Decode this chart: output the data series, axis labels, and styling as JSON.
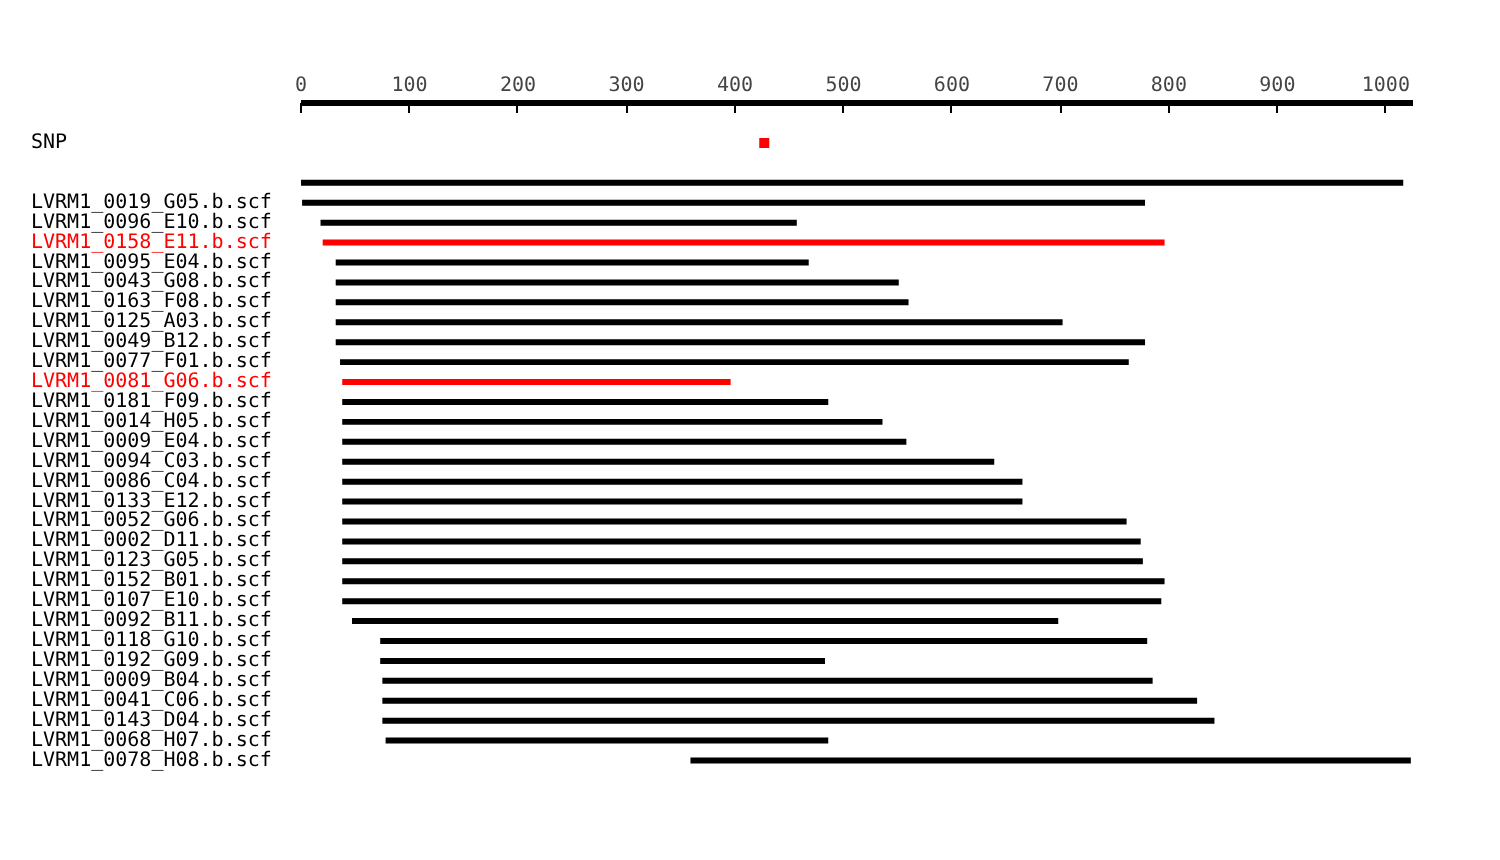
{
  "chart_data": {
    "type": "bar",
    "orientation": "horizontal",
    "categories": [
      "SNP",
      null,
      null,
      "LVRM1_0019_G05.b.scf",
      "LVRM1_0096_E10.b.scf",
      "LVRM1_0158_E11.b.scf",
      "LVRM1_0095_E04.b.scf",
      "LVRM1_0043_G08.b.scf",
      "LVRM1_0163_F08.b.scf",
      "LVRM1_0125_A03.b.scf",
      "LVRM1_0049_B12.b.scf",
      "LVRM1_0077_F01.b.scf",
      "LVRM1_0081_G06.b.scf",
      "LVRM1_0181_F09.b.scf",
      "LVRM1_0014_H05.b.scf",
      "LVRM1_0009_E04.b.scf",
      "LVRM1_0094_C03.b.scf",
      "LVRM1_0086_C04.b.scf",
      "LVRM1_0133_E12.b.scf",
      "LVRM1_0052_G06.b.scf",
      "LVRM1_0002_D11.b.scf",
      "LVRM1_0123_G05.b.scf",
      "LVRM1_0152_B01.b.scf",
      "LVRM1_0107_E10.b.scf",
      "LVRM1_0092_B11.b.scf",
      "LVRM1_0118_G10.b.scf",
      "LVRM1_0192_G09.b.scf",
      "LVRM1_0009_B04.b.scf",
      "LVRM1_0041_C06.b.scf",
      "LVRM1_0143_D04.b.scf",
      "LVRM1_0068_H07.b.scf",
      "LVRM1_0078_H08.b.scf"
    ],
    "series": [
      {
        "type": "scatter",
        "marker": "square",
        "color": "#ff0000",
        "values": [
          427,
          null,
          null,
          null,
          null,
          null,
          null,
          null,
          null,
          null,
          null,
          null,
          null,
          null,
          null,
          null,
          null,
          null,
          null,
          null,
          null,
          null,
          null,
          null,
          null,
          null,
          null,
          null,
          null,
          null,
          null,
          null
        ]
      },
      {
        "base": [
          null,
          null,
          0,
          1,
          18,
          20,
          32,
          32,
          32,
          32,
          32,
          36,
          38,
          38,
          38,
          38,
          38,
          38,
          38,
          38,
          38,
          38,
          38,
          38,
          47,
          73,
          73,
          75,
          75,
          75,
          78,
          359
        ],
        "values": [
          null,
          null,
          1016,
          777,
          439,
          776,
          436,
          519,
          528,
          670,
          746,
          727,
          358,
          448,
          498,
          520,
          601,
          627,
          627,
          723,
          736,
          738,
          758,
          755,
          651,
          707,
          410,
          710,
          751,
          767,
          408,
          664
        ],
        "colors": [
          null,
          null,
          "#000000",
          "#000000",
          "#000000",
          "#ff0000",
          "#000000",
          "#000000",
          "#000000",
          "#000000",
          "#000000",
          "#000000",
          "#ff0000",
          "#000000",
          "#000000",
          "#000000",
          "#000000",
          "#000000",
          "#000000",
          "#000000",
          "#000000",
          "#000000",
          "#000000",
          "#000000",
          "#000000",
          "#000000",
          "#000000",
          "#000000",
          "#000000",
          "#000000",
          "#000000",
          "#000000"
        ]
      }
    ],
    "xlim": [
      0,
      1025
    ],
    "xticks": [
      0,
      100,
      200,
      300,
      400,
      500,
      600,
      700,
      800,
      900,
      1000
    ],
    "grid": false
  }
}
